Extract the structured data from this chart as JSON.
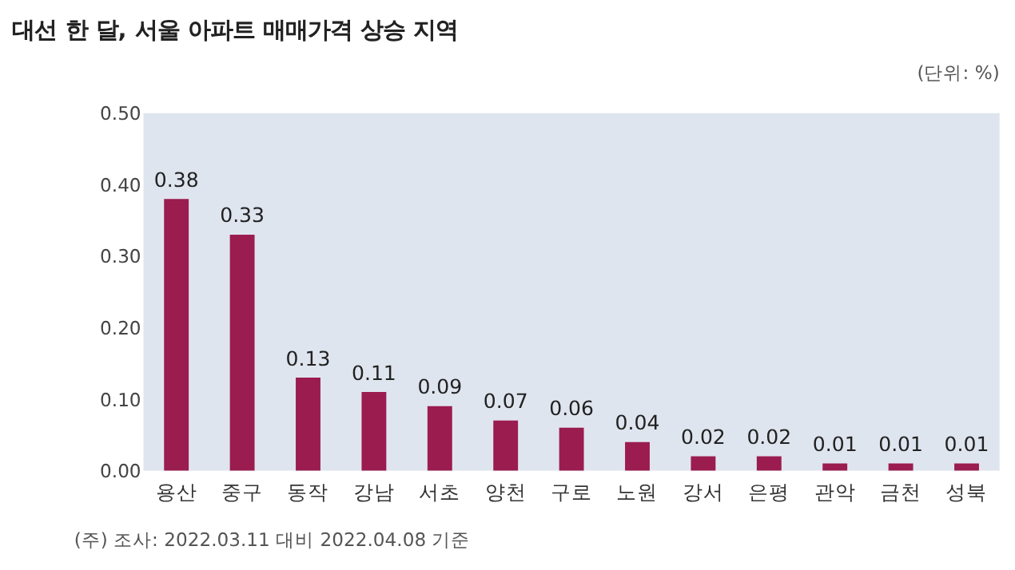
{
  "chart_data": {
    "type": "bar",
    "title": "대선 한 달, 서울 아파트 매매가격 상승 지역",
    "annotations": [
      "(단위: %)",
      "(주) 조사: 2022.03.11 대비 2022.04.08 기준"
    ],
    "categories": [
      "용산",
      "중구",
      "동작",
      "강남",
      "서초",
      "양천",
      "구로",
      "노원",
      "강서",
      "은평",
      "관악",
      "금천",
      "성북"
    ],
    "values": [
      0.38,
      0.33,
      0.13,
      0.11,
      0.09,
      0.07,
      0.06,
      0.04,
      0.02,
      0.02,
      0.01,
      0.01,
      0.01
    ],
    "color": "#9b1c4f",
    "data_labels": true,
    "grid": false,
    "ylim": [
      0,
      0.5
    ],
    "yticks": [
      {
        "value": 0,
        "label": "0.00"
      },
      {
        "value": 0.1,
        "label": "0.10"
      },
      {
        "value": 0.2,
        "label": "0.20"
      },
      {
        "value": 0.3,
        "label": "0.30"
      },
      {
        "value": 0.4,
        "label": "0.40"
      },
      {
        "value": 0.5,
        "label": "0.50"
      }
    ]
  }
}
